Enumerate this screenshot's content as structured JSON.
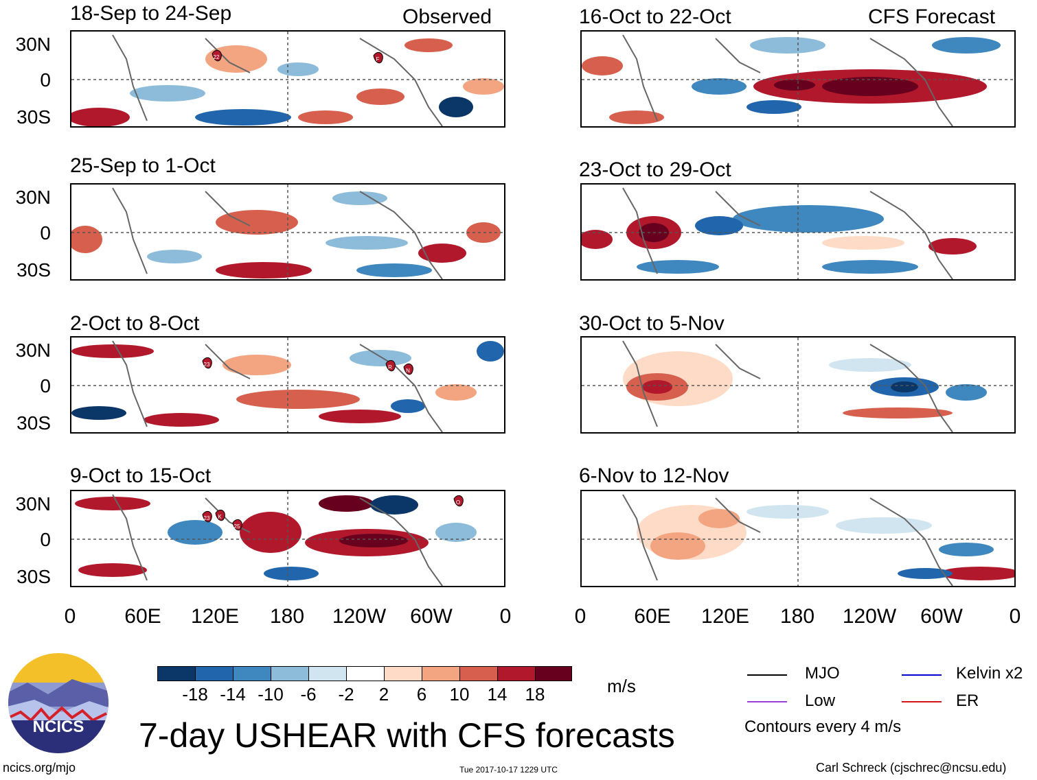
{
  "header": {
    "left_label": "Observed",
    "right_label": "CFS Forecast"
  },
  "panels_observed": [
    {
      "title": "18-Sep to 24-Sep",
      "storms": [
        "22",
        "F"
      ]
    },
    {
      "title": "25-Sep to 1-Oct",
      "storms": []
    },
    {
      "title": "2-Oct to 8-Oct",
      "storms": [
        "23",
        "R",
        "N"
      ]
    },
    {
      "title": "9-Oct to 15-Oct",
      "storms": [
        "23",
        "K",
        "25",
        "O"
      ]
    }
  ],
  "panels_forecast": [
    {
      "title": "16-Oct to 22-Oct"
    },
    {
      "title": "23-Oct to 29-Oct"
    },
    {
      "title": "30-Oct to 5-Nov"
    },
    {
      "title": "6-Nov to 12-Nov"
    }
  ],
  "axes": {
    "lat_labels": [
      "30N",
      "0",
      "30S"
    ],
    "lon_labels": [
      "0",
      "60E",
      "120E",
      "180",
      "120W",
      "60W",
      "0"
    ]
  },
  "colorbar": {
    "labels": [
      "-18",
      "-14",
      "-10",
      "-6",
      "-2",
      "2",
      "6",
      "10",
      "14",
      "18"
    ],
    "colors": [
      "#0b3768",
      "#2166ac",
      "#3f87bf",
      "#8cbcda",
      "#d1e5f0",
      "#ffffff",
      "#fddbc7",
      "#f3a582",
      "#d6604d",
      "#b2182b",
      "#67001f"
    ],
    "units": "m/s"
  },
  "legend": {
    "mjo": "MJO",
    "kelvin": "Kelvin x2",
    "low": "Low",
    "er": "ER",
    "contours": "Contours every 4 m/s",
    "colors": {
      "mjo": "#000000",
      "kelvin": "#0000cc",
      "low": "#9a40d6",
      "er": "#d21414"
    }
  },
  "main_title": "7-day USHEAR with CFS forecasts",
  "logo_text": "NCICS",
  "footer": {
    "url": "ncics.org/mjo",
    "timestamp": "Tue 2017-10-17 1229 UTC",
    "author": "Carl Schreck (cjschrec@ncsu.edu)"
  }
}
